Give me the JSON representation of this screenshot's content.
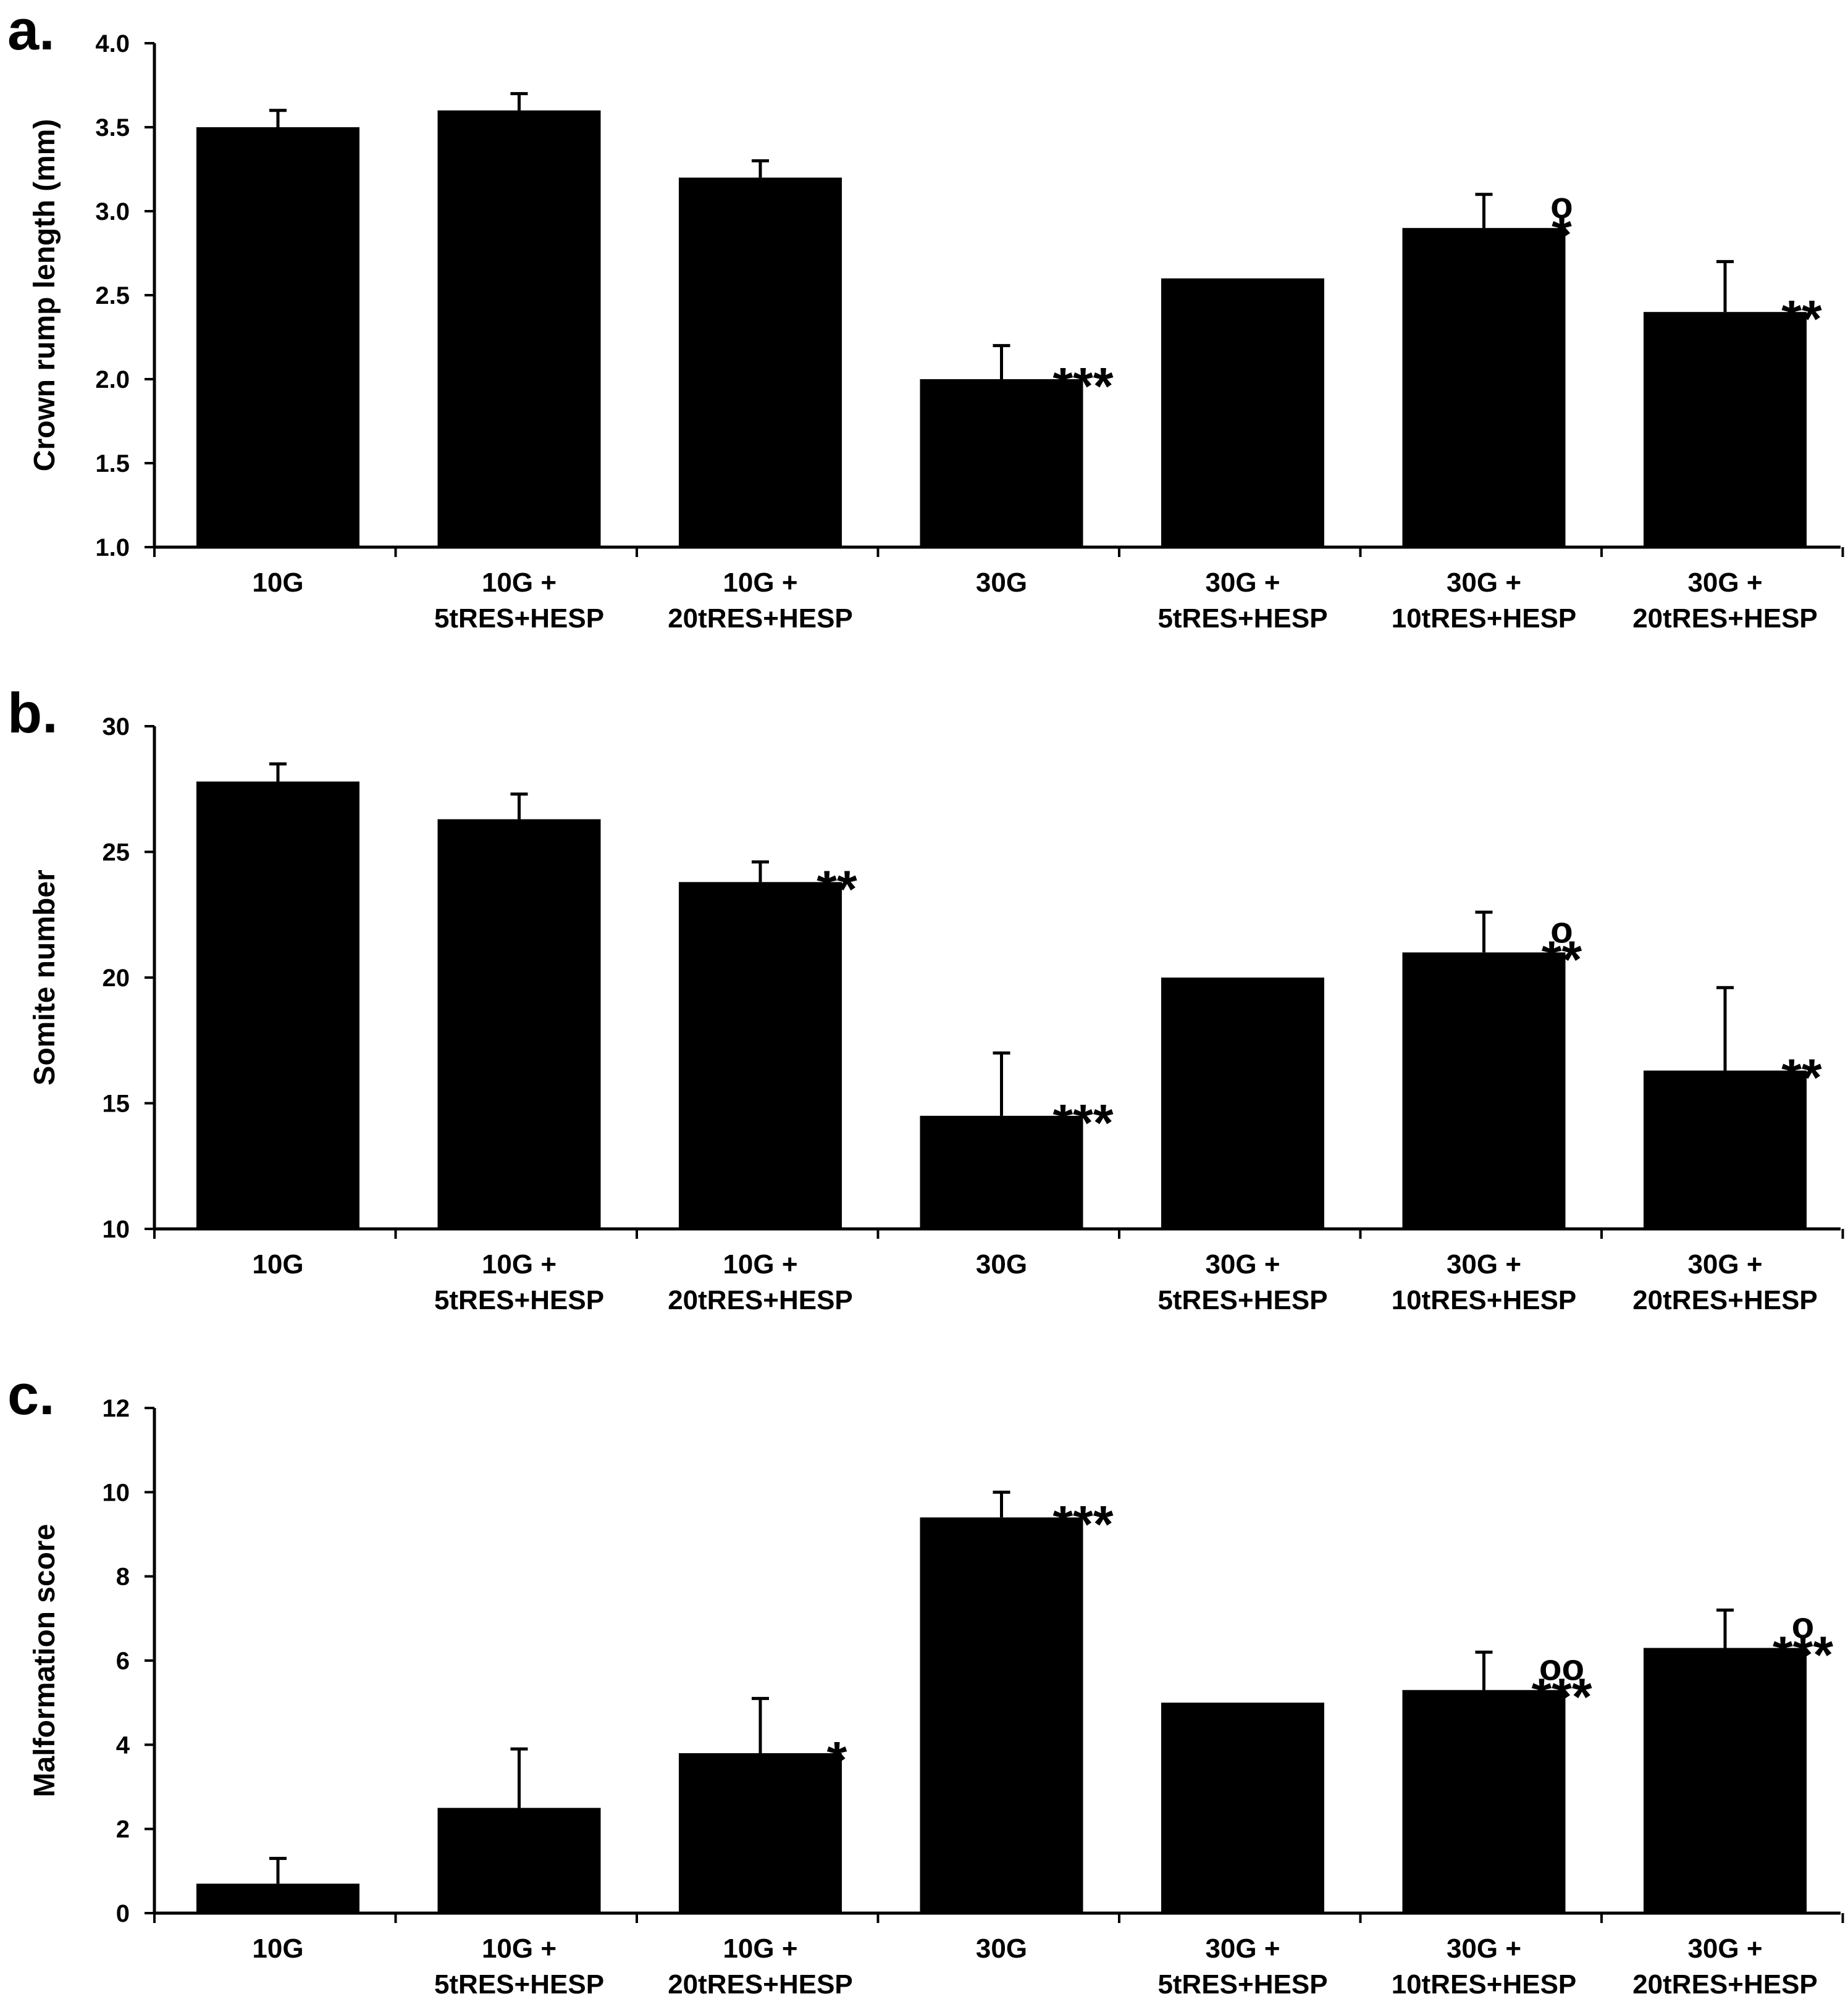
{
  "chart_data": [
    {
      "type": "bar",
      "panel": "a.",
      "ylabel": "Crown rump length (mm)",
      "xlabel": "",
      "ylim": [
        1.0,
        4.0
      ],
      "yticks": [
        "1.0",
        "1.5",
        "2.0",
        "2.5",
        "3.0",
        "3.5",
        "4.0"
      ],
      "categories": [
        [
          "10G"
        ],
        [
          "10G +",
          "5tRES+HESP"
        ],
        [
          "10G +",
          "20tRES+HESP"
        ],
        [
          "30G"
        ],
        [
          "30G +",
          "5tRES+HESP"
        ],
        [
          "30G +",
          "10tRES+HESP"
        ],
        [
          "30G +",
          "20tRES+HESP"
        ]
      ],
      "values": [
        3.5,
        3.6,
        3.2,
        2.0,
        2.6,
        2.9,
        2.4
      ],
      "errors": [
        0.1,
        0.1,
        0.1,
        0.2,
        0.0,
        0.2,
        0.3
      ],
      "significance": [
        "",
        "",
        "",
        "***",
        "",
        "*",
        "**"
      ],
      "comparison": [
        "",
        "",
        "",
        "",
        "",
        "o",
        ""
      ]
    },
    {
      "type": "bar",
      "panel": "b.",
      "ylabel": "Somite number",
      "xlabel": "",
      "ylim": [
        10,
        30
      ],
      "yticks": [
        "10",
        "15",
        "20",
        "25",
        "30"
      ],
      "categories": [
        [
          "10G"
        ],
        [
          "10G +",
          "5tRES+HESP"
        ],
        [
          "10G +",
          "20tRES+HESP"
        ],
        [
          "30G"
        ],
        [
          "30G +",
          "5tRES+HESP"
        ],
        [
          "30G +",
          "10tRES+HESP"
        ],
        [
          "30G +",
          "20tRES+HESP"
        ]
      ],
      "values": [
        27.8,
        26.3,
        23.8,
        14.5,
        20.0,
        21.0,
        16.3
      ],
      "errors": [
        0.7,
        1.0,
        0.8,
        2.5,
        0.0,
        1.6,
        3.3
      ],
      "significance": [
        "",
        "",
        "**",
        "***",
        "",
        "**",
        "**"
      ],
      "comparison": [
        "",
        "",
        "",
        "",
        "",
        "o",
        ""
      ]
    },
    {
      "type": "bar",
      "panel": "c.",
      "ylabel": "Malformation score",
      "xlabel": "",
      "ylim": [
        0,
        12
      ],
      "yticks": [
        "0",
        "2",
        "4",
        "6",
        "8",
        "10",
        "12"
      ],
      "categories": [
        [
          "10G"
        ],
        [
          "10G +",
          "5tRES+HESP"
        ],
        [
          "10G +",
          "20tRES+HESP"
        ],
        [
          "30G"
        ],
        [
          "30G +",
          "5tRES+HESP"
        ],
        [
          "30G +",
          "10tRES+HESP"
        ],
        [
          "30G +",
          "20tRES+HESP"
        ]
      ],
      "values": [
        0.7,
        2.5,
        3.8,
        9.4,
        5.0,
        5.3,
        6.3
      ],
      "errors": [
        0.6,
        1.4,
        1.3,
        0.6,
        0.0,
        0.9,
        0.9
      ],
      "significance": [
        "",
        "",
        "*",
        "***",
        "",
        "***",
        "***"
      ],
      "comparison": [
        "",
        "",
        "",
        "",
        "",
        "oo",
        "o"
      ]
    }
  ]
}
